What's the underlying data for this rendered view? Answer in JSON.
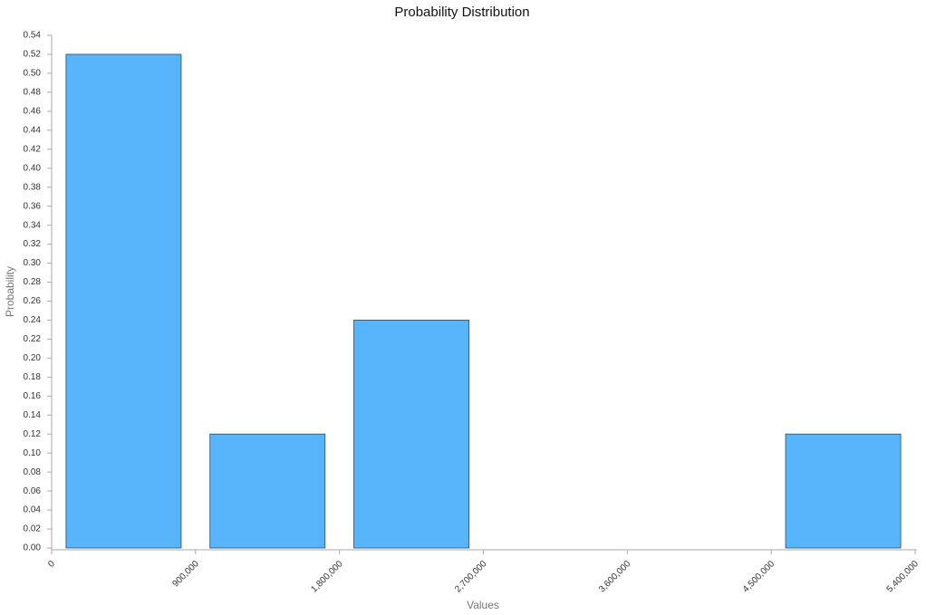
{
  "chart_data": {
    "type": "histogram",
    "title": "Probability Distribution",
    "x_label": "Values",
    "y_label": "Probability",
    "bins": [
      0,
      900000,
      1800000,
      2700000,
      3600000,
      4500000,
      5400000
    ],
    "values": [
      0.52,
      0.12,
      0.24,
      0,
      0,
      0.12
    ],
    "color": "#58b5fc",
    "xlim": [
      0,
      5400000
    ],
    "xticks": [
      0,
      {
        "value": 900000,
        "label": "900,000"
      },
      {
        "value": 1800000,
        "label": "1,800,000"
      },
      {
        "value": 2700000,
        "label": "2,700,000"
      },
      {
        "value": 3600000,
        "label": "3,600,000"
      },
      {
        "value": 4500000,
        "label": "4,500,000"
      },
      {
        "value": 5400000,
        "label": "5,400,000"
      }
    ],
    "ylim": [
      0,
      0.54
    ],
    "yticks": [
      {
        "value": 0,
        "label": "0.00"
      },
      {
        "value": 0.02,
        "label": "0.02"
      },
      {
        "value": 0.04,
        "label": "0.04"
      },
      {
        "value": 0.06,
        "label": "0.06"
      },
      {
        "value": 0.08,
        "label": "0.08"
      },
      {
        "value": 0.1,
        "label": "0.10"
      },
      {
        "value": 0.12,
        "label": "0.12"
      },
      {
        "value": 0.14,
        "label": "0.14"
      },
      {
        "value": 0.16,
        "label": "0.16"
      },
      {
        "value": 0.18,
        "label": "0.18"
      },
      {
        "value": 0.2,
        "label": "0.20"
      },
      {
        "value": 0.22,
        "label": "0.22"
      },
      {
        "value": 0.24,
        "label": "0.24"
      },
      {
        "value": 0.26,
        "label": "0.26"
      },
      {
        "value": 0.28,
        "label": "0.28"
      },
      {
        "value": 0.3,
        "label": "0.30"
      },
      {
        "value": 0.32,
        "label": "0.32"
      },
      {
        "value": 0.34,
        "label": "0.34"
      },
      {
        "value": 0.36,
        "label": "0.36"
      },
      {
        "value": 0.38,
        "label": "0.38"
      },
      {
        "value": 0.4,
        "label": "0.40"
      },
      {
        "value": 0.42,
        "label": "0.42"
      },
      {
        "value": 0.44,
        "label": "0.44"
      },
      {
        "value": 0.46,
        "label": "0.46"
      },
      {
        "value": 0.48,
        "label": "0.48"
      },
      {
        "value": 0.5,
        "label": "0.50"
      },
      {
        "value": 0.52,
        "label": "0.52"
      },
      {
        "value": 0.54,
        "label": "0.54"
      }
    ],
    "grid": false
  }
}
